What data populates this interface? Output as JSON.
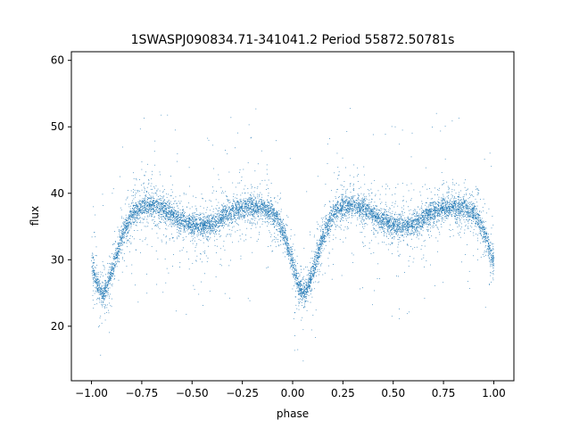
{
  "chart_data": {
    "type": "scatter",
    "title": "1SWASPJ090834.71-341041.2 Period 55872.50781s",
    "xlabel": "phase",
    "ylabel": "flux",
    "xlim": [
      -1.1,
      1.1
    ],
    "ylim": [
      11.8,
      61.3
    ],
    "xticks": [
      -1.0,
      -0.75,
      -0.5,
      -0.25,
      0.0,
      0.25,
      0.5,
      0.75,
      1.0
    ],
    "xtick_labels": [
      "−1.00",
      "−0.75",
      "−0.50",
      "−0.25",
      "0.00",
      "0.25",
      "0.50",
      "0.75",
      "1.00"
    ],
    "yticks": [
      20,
      30,
      40,
      50,
      60
    ],
    "ytick_labels": [
      "20",
      "30",
      "40",
      "50",
      "60"
    ],
    "grid": false,
    "marker_color": "#1f77b4",
    "light_curve_trend": {
      "phase": [
        0.0,
        0.03,
        0.06,
        0.1,
        0.15,
        0.2,
        0.25,
        0.3,
        0.35,
        0.4,
        0.45,
        0.5,
        0.55,
        0.6,
        0.65,
        0.7,
        0.75,
        0.8,
        0.85,
        0.9,
        0.93,
        0.96,
        1.0
      ],
      "flux": [
        29.5,
        26.0,
        24.8,
        28.0,
        33.5,
        36.8,
        38.0,
        38.2,
        37.8,
        36.8,
        35.8,
        35.2,
        35.0,
        35.3,
        36.3,
        37.3,
        37.8,
        38.0,
        37.8,
        37.0,
        35.8,
        33.5,
        29.5
      ]
    },
    "point_count": 9000
  }
}
